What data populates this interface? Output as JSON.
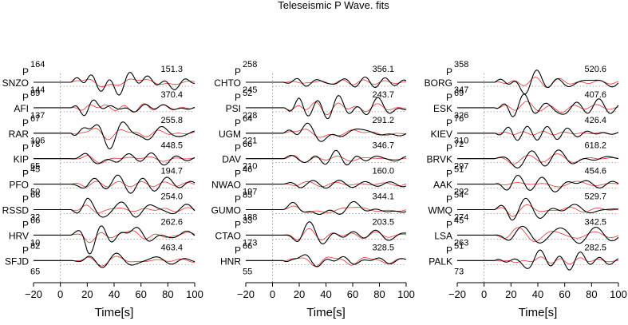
{
  "chart_data": {
    "type": "line",
    "title": "Teleseismic P Wave. fits",
    "xlabel": "Time[s]",
    "xlim": [
      -20,
      100
    ],
    "xticks": [
      "−20",
      "0",
      "20",
      "40",
      "60",
      "80",
      "100"
    ],
    "legend": "none",
    "colors": {
      "observed": "#000000",
      "synthetic": "#e8322d",
      "zero_line": "#8a8a8a"
    },
    "panels": [
      {
        "stations": [
          {
            "phase": "P",
            "name": "SNZO",
            "azimuth": "164",
            "distance": "89",
            "amplitude": "151.3"
          },
          {
            "phase": "P",
            "name": "AFI",
            "azimuth": "144",
            "distance": "67",
            "amplitude": "370.4"
          },
          {
            "phase": "P",
            "name": "RAR",
            "azimuth": "137",
            "distance": "78",
            "amplitude": "255.8"
          },
          {
            "phase": "P",
            "name": "KIP",
            "azimuth": "106",
            "distance": "45",
            "amplitude": "448.5"
          },
          {
            "phase": "P",
            "name": "PFO",
            "azimuth": "65",
            "distance": "66",
            "amplitude": "194.7"
          },
          {
            "phase": "P",
            "name": "RSSD",
            "azimuth": "50",
            "distance": "66",
            "amplitude": "254.0"
          },
          {
            "phase": "P",
            "name": "HRV",
            "azimuth": "32",
            "distance": "82",
            "amplitude": "262.6"
          },
          {
            "phase": "P",
            "name": "SFJD",
            "azimuth": "10",
            "distance": "65",
            "amplitude": "463.4"
          }
        ]
      },
      {
        "stations": [
          {
            "phase": "P",
            "name": "CHTO",
            "azimuth": "258",
            "distance": "52",
            "amplitude": "356.1"
          },
          {
            "phase": "P",
            "name": "PSI",
            "azimuth": "245",
            "distance": "64",
            "amplitude": "243.7"
          },
          {
            "phase": "P",
            "name": "UGM",
            "azimuth": "228",
            "distance": "66",
            "amplitude": "291.2"
          },
          {
            "phase": "P",
            "name": "DAV",
            "azimuth": "221",
            "distance": "46",
            "amplitude": "346.7"
          },
          {
            "phase": "P",
            "name": "NWAO",
            "azimuth": "210",
            "distance": "85",
            "amplitude": "160.0"
          },
          {
            "phase": "P",
            "name": "GUMO",
            "azimuth": "197",
            "distance": "33",
            "amplitude": "344.1"
          },
          {
            "phase": "P",
            "name": "CTAO",
            "azimuth": "188",
            "distance": "66",
            "amplitude": "203.5"
          },
          {
            "phase": "P",
            "name": "HNR",
            "azimuth": "173",
            "distance": "55",
            "amplitude": "328.5"
          }
        ]
      },
      {
        "stations": [
          {
            "phase": "P",
            "name": "BORG",
            "azimuth": "358",
            "distance": "69",
            "amplitude": "520.6"
          },
          {
            "phase": "P",
            "name": "ESK",
            "azimuth": "347",
            "distance": "76",
            "amplitude": "407.6"
          },
          {
            "phase": "P",
            "name": "KIEV",
            "azimuth": "326",
            "distance": "72",
            "amplitude": "426.4"
          },
          {
            "phase": "P",
            "name": "BRVK",
            "azimuth": "310",
            "distance": "51",
            "amplitude": "618.2"
          },
          {
            "phase": "P",
            "name": "AAK",
            "azimuth": "297",
            "distance": "54",
            "amplitude": "454.6"
          },
          {
            "phase": "P",
            "name": "WMQ",
            "azimuth": "292",
            "distance": "45",
            "amplitude": "529.7"
          },
          {
            "phase": "P",
            "name": "LSA",
            "azimuth": "274",
            "distance": "51",
            "amplitude": "342.5"
          },
          {
            "phase": "P",
            "name": "PALK",
            "azimuth": "263",
            "distance": "73",
            "amplitude": "282.5"
          }
        ]
      }
    ]
  }
}
